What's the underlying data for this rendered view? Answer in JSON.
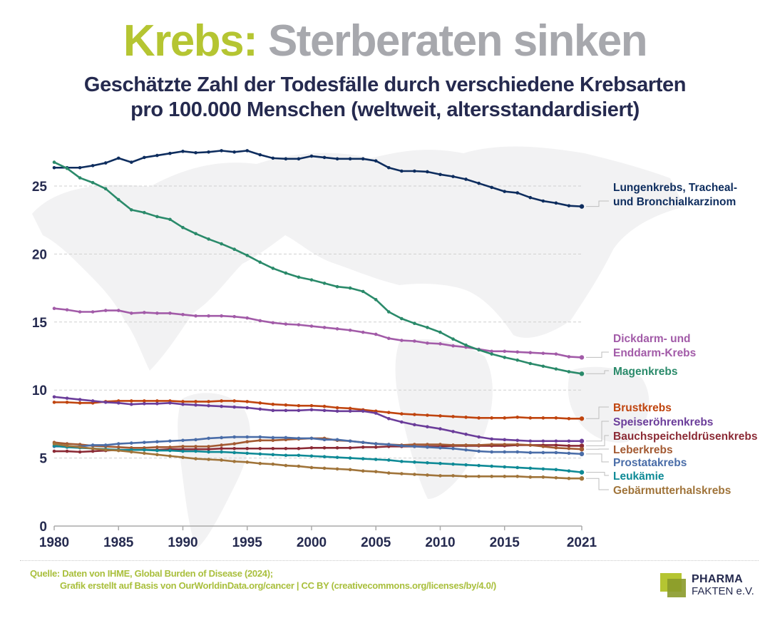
{
  "header": {
    "title_accent": "Krebs:",
    "title_rest": "Sterberaten sinken",
    "subtitle_line1": "Geschätzte Zahl der Todesfälle durch verschiedene Krebsarten",
    "subtitle_line2": "pro 100.000 Menschen (weltweit, altersstandardisiert)"
  },
  "colors": {
    "title_accent": "#b5c532",
    "title_rest": "#a7a8ad",
    "subtitle": "#252a4f",
    "axis_text": "#252a4f",
    "source_text": "#a9bf3c"
  },
  "chart_data": {
    "type": "line",
    "title": "Geschätzte Zahl der Todesfälle durch verschiedene Krebsarten pro 100.000 Menschen (weltweit, altersstandardisiert)",
    "xlabel": "",
    "ylabel": "",
    "x": [
      1980,
      1981,
      1982,
      1983,
      1984,
      1985,
      1986,
      1987,
      1988,
      1989,
      1990,
      1991,
      1992,
      1993,
      1994,
      1995,
      1996,
      1997,
      1998,
      1999,
      2000,
      2001,
      2002,
      2003,
      2004,
      2005,
      2006,
      2007,
      2008,
      2009,
      2010,
      2011,
      2012,
      2013,
      2014,
      2015,
      2016,
      2017,
      2018,
      2019,
      2020,
      2021
    ],
    "xticks": [
      "1980",
      "1985",
      "1990",
      "1995",
      "2000",
      "2005",
      "2010",
      "2015",
      "2021"
    ],
    "xtick_values": [
      1980,
      1985,
      1990,
      1995,
      2000,
      2005,
      2010,
      2015,
      2021
    ],
    "yticks": [
      "0",
      "5",
      "10",
      "15",
      "20",
      "25"
    ],
    "ytick_values": [
      0,
      5,
      10,
      15,
      20,
      25
    ],
    "xlim": [
      1980,
      2021
    ],
    "ylim": [
      0,
      27.5
    ],
    "grid": "horizontal dashed",
    "legend": "right (direct labels)",
    "background": "world map silhouette",
    "series": [
      {
        "name": "Lungenkrebs, Tracheal- und Bronchialkarzinom",
        "label_lines": [
          "Lungenkrebs, Tracheal-",
          "und Bronchialkarzinom"
        ],
        "color": "#0e2d5e",
        "values": [
          26.35,
          26.35,
          26.35,
          26.5,
          26.7,
          27.05,
          26.75,
          27.1,
          27.25,
          27.4,
          27.55,
          27.45,
          27.5,
          27.6,
          27.5,
          27.6,
          27.3,
          27.05,
          27.0,
          27.0,
          27.2,
          27.1,
          27.0,
          27.0,
          27.0,
          26.85,
          26.35,
          26.1,
          26.1,
          26.05,
          25.85,
          25.7,
          25.5,
          25.2,
          24.9,
          24.6,
          24.5,
          24.15,
          23.9,
          23.75,
          23.55,
          23.5
        ]
      },
      {
        "name": "Dickdarm- und Enddarm-Krebs",
        "label_lines": [
          "Dickdarm- und",
          "Enddarm-Krebs"
        ],
        "color": "#a25ba8",
        "values": [
          16.0,
          15.9,
          15.75,
          15.75,
          15.85,
          15.85,
          15.65,
          15.7,
          15.65,
          15.65,
          15.55,
          15.45,
          15.45,
          15.45,
          15.4,
          15.3,
          15.1,
          14.95,
          14.85,
          14.8,
          14.7,
          14.6,
          14.5,
          14.4,
          14.25,
          14.1,
          13.8,
          13.65,
          13.6,
          13.45,
          13.4,
          13.25,
          13.15,
          13.0,
          12.85,
          12.85,
          12.8,
          12.75,
          12.7,
          12.65,
          12.45,
          12.4
        ]
      },
      {
        "name": "Magenkrebs",
        "label_lines": [
          "Magenkrebs"
        ],
        "color": "#2a8a6a",
        "values": [
          26.75,
          26.3,
          25.6,
          25.25,
          24.8,
          24.0,
          23.25,
          23.05,
          22.75,
          22.55,
          21.95,
          21.5,
          21.1,
          20.75,
          20.35,
          19.9,
          19.4,
          18.95,
          18.6,
          18.3,
          18.1,
          17.85,
          17.6,
          17.5,
          17.25,
          16.65,
          15.75,
          15.25,
          14.9,
          14.6,
          14.25,
          13.75,
          13.3,
          12.95,
          12.65,
          12.4,
          12.2,
          11.95,
          11.75,
          11.55,
          11.35,
          11.2
        ]
      },
      {
        "name": "Brustkrebs",
        "label_lines": [
          "Brustkrebs"
        ],
        "color": "#c0440e",
        "values": [
          9.1,
          9.1,
          9.05,
          9.05,
          9.15,
          9.2,
          9.2,
          9.2,
          9.2,
          9.2,
          9.15,
          9.15,
          9.15,
          9.2,
          9.2,
          9.15,
          9.05,
          8.95,
          8.9,
          8.85,
          8.85,
          8.8,
          8.7,
          8.65,
          8.55,
          8.45,
          8.35,
          8.25,
          8.2,
          8.15,
          8.1,
          8.05,
          8.0,
          7.95,
          7.95,
          7.95,
          8.0,
          7.95,
          7.95,
          7.95,
          7.9,
          7.9
        ]
      },
      {
        "name": "Speiseröhrenkrebs",
        "label_lines": [
          "Speiseröhrenkrebs"
        ],
        "color": "#6b3d9a",
        "values": [
          9.5,
          9.4,
          9.3,
          9.2,
          9.1,
          9.05,
          8.95,
          9.0,
          9.0,
          9.05,
          8.95,
          8.9,
          8.85,
          8.8,
          8.75,
          8.7,
          8.6,
          8.5,
          8.5,
          8.5,
          8.55,
          8.5,
          8.45,
          8.45,
          8.45,
          8.3,
          7.9,
          7.65,
          7.45,
          7.3,
          7.15,
          6.95,
          6.75,
          6.55,
          6.4,
          6.35,
          6.3,
          6.25,
          6.25,
          6.25,
          6.25,
          6.25
        ]
      },
      {
        "name": "Bauchspeicheldrüsenkrebs",
        "label_lines": [
          "Bauchspeicheldrüsenkrebs"
        ],
        "color": "#8b2a35",
        "values": [
          5.5,
          5.5,
          5.45,
          5.5,
          5.55,
          5.6,
          5.6,
          5.6,
          5.6,
          5.65,
          5.65,
          5.65,
          5.65,
          5.7,
          5.7,
          5.7,
          5.7,
          5.7,
          5.7,
          5.7,
          5.75,
          5.75,
          5.75,
          5.75,
          5.8,
          5.8,
          5.85,
          5.85,
          5.85,
          5.85,
          5.85,
          5.9,
          5.9,
          5.9,
          5.9,
          5.9,
          5.95,
          5.95,
          5.95,
          5.95,
          5.9,
          5.9
        ]
      },
      {
        "name": "Leberkrebs",
        "label_lines": [
          "Leberkrebs"
        ],
        "color": "#a35a32",
        "values": [
          6.15,
          6.05,
          6.0,
          5.9,
          5.85,
          5.8,
          5.75,
          5.75,
          5.8,
          5.8,
          5.85,
          5.85,
          5.85,
          5.95,
          6.05,
          6.2,
          6.3,
          6.3,
          6.35,
          6.4,
          6.45,
          6.45,
          6.3,
          6.25,
          6.15,
          6.05,
          6.0,
          5.95,
          6.0,
          6.0,
          6.0,
          5.95,
          5.95,
          5.95,
          6.0,
          6.0,
          6.0,
          5.95,
          5.85,
          5.75,
          5.7,
          5.65
        ]
      },
      {
        "name": "Prostatakrebs",
        "label_lines": [
          "Prostatakrebs"
        ],
        "color": "#4a6da8",
        "values": [
          5.85,
          5.85,
          5.85,
          5.95,
          5.95,
          6.05,
          6.1,
          6.15,
          6.2,
          6.25,
          6.3,
          6.35,
          6.45,
          6.5,
          6.55,
          6.55,
          6.55,
          6.5,
          6.5,
          6.45,
          6.45,
          6.35,
          6.35,
          6.25,
          6.15,
          6.05,
          6.0,
          5.9,
          5.85,
          5.8,
          5.75,
          5.7,
          5.6,
          5.5,
          5.45,
          5.45,
          5.45,
          5.4,
          5.4,
          5.4,
          5.35,
          5.3
        ]
      },
      {
        "name": "Leukämie",
        "label_lines": [
          "Leukämie"
        ],
        "color": "#0e8a96",
        "values": [
          5.9,
          5.8,
          5.75,
          5.7,
          5.65,
          5.6,
          5.6,
          5.6,
          5.55,
          5.55,
          5.5,
          5.5,
          5.45,
          5.45,
          5.4,
          5.35,
          5.3,
          5.25,
          5.2,
          5.2,
          5.15,
          5.1,
          5.05,
          5.0,
          4.95,
          4.9,
          4.85,
          4.75,
          4.7,
          4.65,
          4.6,
          4.55,
          4.5,
          4.45,
          4.4,
          4.35,
          4.3,
          4.25,
          4.2,
          4.15,
          4.05,
          3.95
        ]
      },
      {
        "name": "Gebärmutterhalskrebs",
        "label_lines": [
          "Gebärmutterhalskrebs"
        ],
        "color": "#a0743a",
        "values": [
          6.05,
          5.9,
          5.8,
          5.7,
          5.6,
          5.55,
          5.45,
          5.35,
          5.25,
          5.15,
          5.05,
          4.95,
          4.9,
          4.85,
          4.75,
          4.7,
          4.6,
          4.55,
          4.45,
          4.4,
          4.3,
          4.25,
          4.2,
          4.15,
          4.05,
          4.0,
          3.9,
          3.85,
          3.8,
          3.75,
          3.7,
          3.7,
          3.65,
          3.65,
          3.65,
          3.65,
          3.65,
          3.6,
          3.6,
          3.55,
          3.5,
          3.5
        ]
      }
    ]
  },
  "footer": {
    "source_line1": "Quelle: Daten von IHME, Global Burden of Disease (2024);",
    "source_line2": "Grafik erstellt auf Basis von OurWorldinData.org/cancer | CC BY (creativecommons.org/licenses/by/4.0/)",
    "logo_line1": "PHARMA",
    "logo_line2": "FAKTEN e.V."
  }
}
